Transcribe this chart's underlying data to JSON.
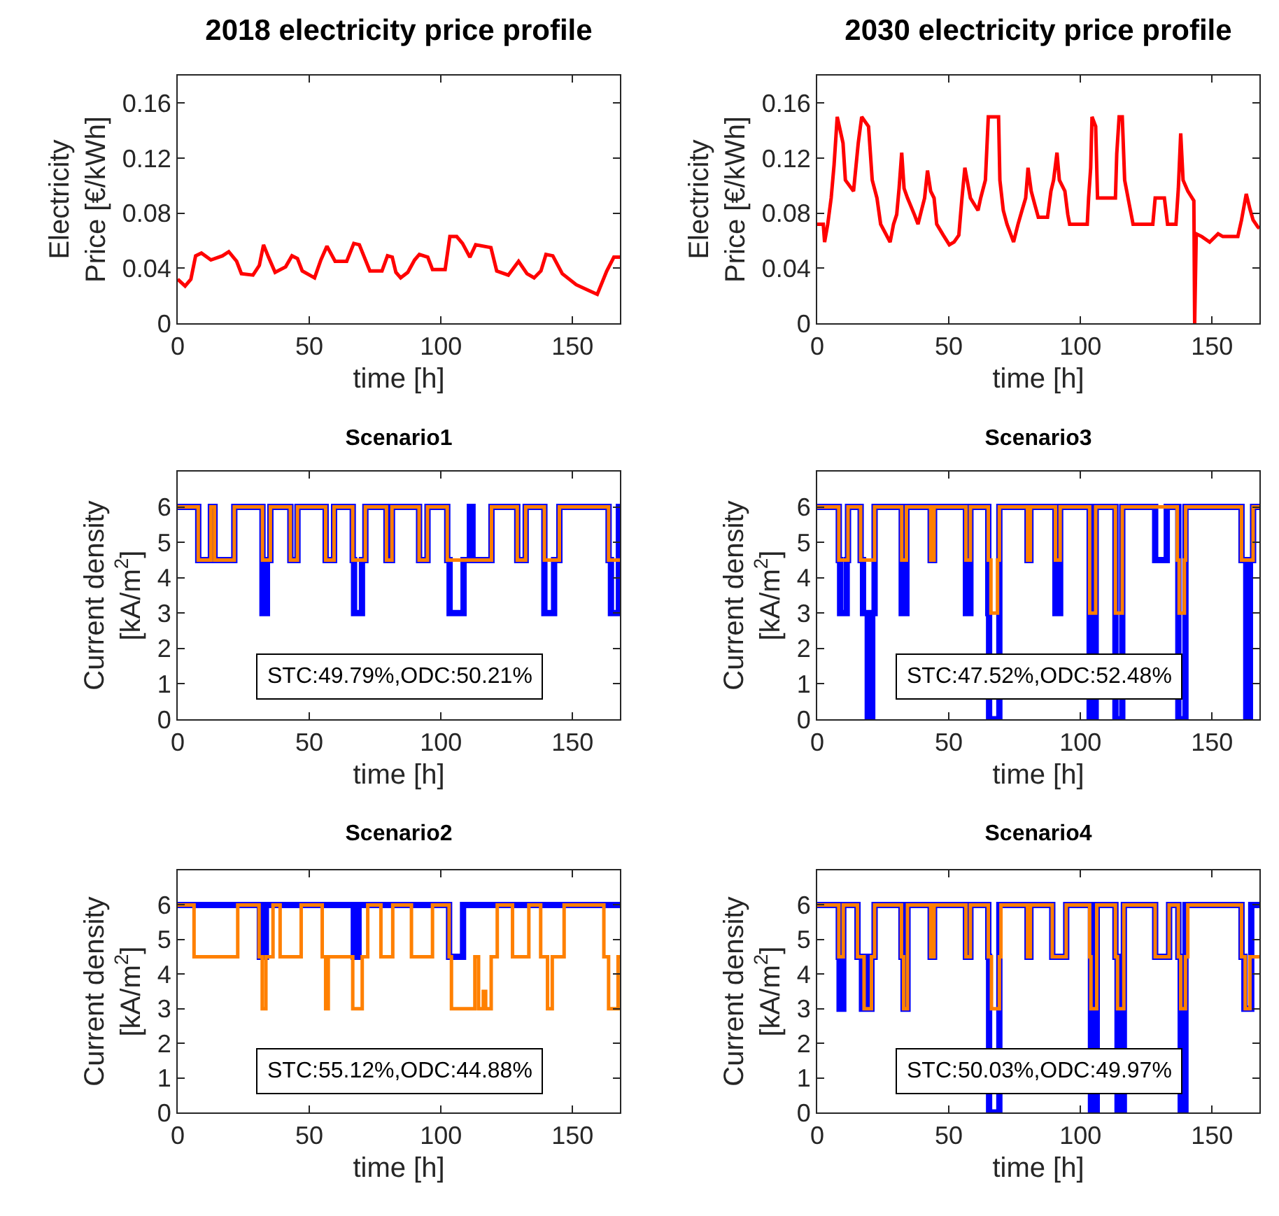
{
  "chart_data": [
    {
      "type": "line",
      "title": "2018 electricity price profile",
      "xlabel": "time [h]",
      "ylabel": "Electricity\nPrice [€/kWh]",
      "xlim": [
        0,
        168
      ],
      "xticks": [
        0,
        50,
        100,
        150
      ],
      "ylim": [
        0,
        0.18
      ],
      "yticks": [
        0,
        0.04,
        0.08,
        0.12,
        0.16
      ],
      "series": [
        {
          "color": "#ff0000",
          "x": [
            0,
            2.8,
            5,
            6.8,
            9,
            12.6,
            17,
            19.4,
            22.4,
            24.2,
            28.6,
            31,
            32.6,
            34.5,
            37,
            41,
            43.4,
            45.5,
            47.3,
            52,
            54.4,
            56.7,
            59.8,
            64.2,
            66.9,
            69,
            73,
            77.6,
            79.7,
            81.5,
            82.9,
            84.7,
            87.4,
            90,
            91.8,
            95,
            96.8,
            101.6,
            103.4,
            106,
            108.2,
            111,
            113.2,
            119,
            121.2,
            125.6,
            129.5,
            132.7,
            135.4,
            138,
            139.9,
            142.5,
            146.1,
            151.4,
            155.9,
            159.4,
            163,
            165.7,
            168
          ],
          "values": [
            0.032,
            0.027,
            0.032,
            0.049,
            0.051,
            0.046,
            0.049,
            0.052,
            0.045,
            0.036,
            0.035,
            0.042,
            0.057,
            0.048,
            0.037,
            0.041,
            0.049,
            0.047,
            0.038,
            0.033,
            0.046,
            0.056,
            0.045,
            0.045,
            0.058,
            0.057,
            0.038,
            0.038,
            0.049,
            0.048,
            0.037,
            0.033,
            0.037,
            0.046,
            0.05,
            0.048,
            0.039,
            0.039,
            0.063,
            0.063,
            0.058,
            0.048,
            0.057,
            0.055,
            0.038,
            0.035,
            0.045,
            0.036,
            0.033,
            0.038,
            0.05,
            0.049,
            0.036,
            0.028,
            0.024,
            0.021,
            0.038,
            0.048,
            0.048
          ]
        }
      ]
    },
    {
      "type": "line",
      "title": "2030 electricity price profile",
      "xlabel": "time [h]",
      "ylabel": "Electricity\nPrice [€/kWh]",
      "xlim": [
        0,
        168
      ],
      "xticks": [
        0,
        50,
        100,
        150
      ],
      "ylim": [
        0,
        0.18
      ],
      "yticks": [
        0,
        0.04,
        0.08,
        0.12,
        0.16
      ],
      "series": [
        {
          "color": "#ff0000",
          "x": [
            0,
            2.3,
            2.8,
            4,
            5.3,
            6.4,
            7.6,
            9.8,
            10.7,
            13.8,
            15.6,
            16.9,
            19.5,
            20.9,
            22.7,
            24.1,
            27.7,
            29,
            30.2,
            31.1,
            32.1,
            33,
            34.3,
            36.9,
            38.3,
            39.6,
            40.8,
            41.9,
            43.1,
            44.4,
            45.4,
            47.9,
            50.2,
            52,
            53.8,
            55,
            56.1,
            58.2,
            61.1,
            62.1,
            63.9,
            65,
            68.9,
            69.4,
            70.7,
            72.1,
            74.6,
            76.3,
            77.8,
            79.2,
            80.1,
            81.3,
            82.7,
            84,
            87.5,
            88.8,
            89.8,
            91.1,
            92,
            94.1,
            95.2,
            95.9,
            102.6,
            103.1,
            103.9,
            104.4,
            105.8,
            106.5,
            113.3,
            113.8,
            114.7,
            115.9,
            116.8,
            118.6,
            120,
            127.5,
            128.4,
            131.9,
            133.1,
            136.3,
            137.2,
            138.1,
            139,
            140.8,
            143.1,
            143.4,
            144,
            146.1,
            149.1,
            152.3,
            154.1,
            159.8,
            161.2,
            163,
            164.4,
            165.6,
            167.4,
            168
          ],
          "values": [
            0.072,
            0.072,
            0.059,
            0.072,
            0.091,
            0.115,
            0.15,
            0.131,
            0.104,
            0.096,
            0.131,
            0.15,
            0.143,
            0.104,
            0.091,
            0.072,
            0.059,
            0.072,
            0.079,
            0.098,
            0.124,
            0.098,
            0.091,
            0.079,
            0.072,
            0.082,
            0.091,
            0.111,
            0.096,
            0.091,
            0.072,
            0.064,
            0.057,
            0.059,
            0.064,
            0.091,
            0.113,
            0.091,
            0.082,
            0.091,
            0.104,
            0.15,
            0.15,
            0.104,
            0.082,
            0.072,
            0.059,
            0.072,
            0.082,
            0.091,
            0.113,
            0.096,
            0.086,
            0.077,
            0.077,
            0.096,
            0.104,
            0.124,
            0.104,
            0.096,
            0.079,
            0.072,
            0.072,
            0.091,
            0.113,
            0.15,
            0.143,
            0.091,
            0.091,
            0.123,
            0.15,
            0.15,
            0.104,
            0.086,
            0.072,
            0.072,
            0.091,
            0.091,
            0.072,
            0.072,
            0.098,
            0.138,
            0.104,
            0.096,
            0.089,
            0,
            0.065,
            0.063,
            0.059,
            0.065,
            0.063,
            0.063,
            0.075,
            0.094,
            0.083,
            0.075,
            0.07,
            0.069
          ]
        }
      ]
    },
    {
      "type": "step",
      "title": "Scenario1",
      "xlabel": "time [h]",
      "ylabel": "Current density\n[kA/m$^{2}$]",
      "xlim": [
        0,
        168
      ],
      "xticks": [
        0,
        50,
        100,
        150
      ],
      "ylim": [
        0,
        7
      ],
      "yticks": [
        0,
        1,
        2,
        3,
        4,
        5,
        6
      ],
      "annotations": [
        "STC:49.79%,ODC:50.21%"
      ],
      "series": [
        {
          "color": "#0000ff",
          "x": [
            0,
            7.8,
            12.6,
            14,
            21.5,
            32.2,
            33.9,
            35.2,
            42.8,
            45.5,
            56.2,
            59.4,
            66.5,
            67,
            70,
            71.3,
            79.3,
            81.4,
            91.7,
            94.9,
            102.4,
            103.3,
            108.6,
            111,
            112,
            119.2,
            129,
            132.2,
            139.3,
            143,
            145,
            163.7,
            164.6,
            167.6,
            168
          ],
          "values": [
            6,
            4.5,
            6,
            4.5,
            6,
            3,
            4.5,
            6,
            4.5,
            6,
            4.5,
            6,
            4.5,
            3,
            4.5,
            6,
            4.5,
            6,
            4.5,
            6,
            4.5,
            3,
            4.5,
            6,
            4.5,
            6,
            4.5,
            6,
            3,
            4.5,
            6,
            4.5,
            3,
            6,
            6
          ]
        },
        {
          "color": "#ff8000",
          "x": [
            0,
            7.8,
            12.6,
            14,
            21.5,
            32.2,
            35.2,
            42.8,
            45.5,
            56.2,
            59.4,
            66.5,
            71.3,
            79.3,
            81.4,
            91.7,
            94.9,
            102.4,
            119.2,
            129,
            132.2,
            139.3,
            145,
            163.7,
            168
          ],
          "values": [
            6,
            4.5,
            6,
            4.5,
            6,
            4.5,
            6,
            4.5,
            6,
            4.5,
            6,
            4.5,
            6,
            4.5,
            6,
            4.5,
            6,
            4.5,
            6,
            4.5,
            6,
            4.5,
            6,
            4.5,
            4.5
          ]
        }
      ]
    },
    {
      "type": "step",
      "title": "Scenario3",
      "xlabel": "time [h]",
      "ylabel": "Current density\n[kA/m$^{2}$]",
      "xlim": [
        0,
        168
      ],
      "xticks": [
        0,
        50,
        100,
        150
      ],
      "ylim": [
        0,
        7
      ],
      "yticks": [
        0,
        1,
        2,
        3,
        4,
        5,
        6
      ],
      "annotations": [
        "STC:47.52%,ODC:52.48%"
      ],
      "series": [
        {
          "color": "#0000ff",
          "x": [
            0,
            8.2,
            8.7,
            11.2,
            11.7,
            16.5,
            17.4,
            19.2,
            20.9,
            21.8,
            32.1,
            33.9,
            43.1,
            44.4,
            56.5,
            58.2,
            65,
            65.3,
            69.2,
            79.9,
            81,
            90.5,
            92.3,
            103.5,
            105.8,
            113.3,
            115.9,
            128.4,
            132.8,
            137.2,
            139.9,
            161.2,
            163,
            164.4,
            165.6,
            168
          ],
          "values": [
            6,
            4.5,
            3,
            4.5,
            6,
            4.5,
            3,
            0,
            3,
            6,
            3,
            6,
            4.5,
            6,
            3,
            6,
            3,
            0,
            6,
            4.5,
            6,
            3,
            6,
            0,
            6,
            0,
            6,
            4.5,
            6,
            0,
            6,
            4.5,
            0,
            4.5,
            6,
            6
          ]
        },
        {
          "color": "#ff8000",
          "x": [
            0,
            8.2,
            11.7,
            16.5,
            21.8,
            32.1,
            33.9,
            43.1,
            44.4,
            56.5,
            58.2,
            65,
            66,
            68.5,
            69.2,
            79.9,
            81,
            90.5,
            92.3,
            103.5,
            105.8,
            113.3,
            115.9,
            136.8,
            137.5,
            139.5,
            140,
            161.2,
            165.6,
            168
          ],
          "values": [
            6,
            4.5,
            6,
            4.5,
            6,
            4.5,
            6,
            4.5,
            6,
            4.5,
            6,
            4.5,
            3,
            4.5,
            6,
            4.5,
            6,
            4.5,
            6,
            3,
            6,
            3,
            6,
            4.5,
            3,
            4.5,
            6,
            4.5,
            6,
            6
          ]
        }
      ]
    },
    {
      "type": "step",
      "title": "Scenario2",
      "xlabel": "time [h]",
      "ylabel": "Current density\n[kA/m$^{2}$]",
      "xlim": [
        0,
        168
      ],
      "xticks": [
        0,
        50,
        100,
        150
      ],
      "ylim": [
        0,
        7
      ],
      "yticks": [
        0,
        1,
        2,
        3,
        4,
        5,
        6
      ],
      "annotations": [
        "STC:55.12%,ODC:44.88%"
      ],
      "series": [
        {
          "color": "#0000ff",
          "x": [
            0,
            31.2,
            33.5,
            66.9,
            68.7,
            103.1,
            108.4,
            168
          ],
          "values": [
            6,
            4.5,
            6,
            4.5,
            6,
            4.5,
            6,
            6
          ]
        },
        {
          "color": "#ff8000",
          "x": [
            0,
            6.2,
            22.8,
            30.9,
            32.1,
            33.5,
            36.2,
            38.9,
            46.9,
            54.9,
            56.2,
            57.2,
            66.5,
            70.1,
            72.2,
            77.2,
            81.7,
            88.8,
            96.8,
            103.1,
            104,
            112.9,
            114.3,
            116.1,
            117,
            119.1,
            121.4,
            127.2,
            133.4,
            137.9,
            140.5,
            142.3,
            146.8,
            161.9,
            163.7,
            167.3,
            168
          ],
          "values": [
            6,
            4.5,
            6,
            4.5,
            3,
            4.5,
            6,
            4.5,
            6,
            4.5,
            3,
            4.5,
            3,
            4.5,
            6,
            4.5,
            6,
            4.5,
            6,
            4.5,
            3,
            4.5,
            3,
            3.5,
            3,
            4.5,
            6,
            4.5,
            6,
            4.5,
            3,
            4.5,
            6,
            4.5,
            3,
            4.5,
            4.5
          ]
        }
      ]
    },
    {
      "type": "step",
      "title": "Scenario4",
      "xlabel": "time [h]",
      "ylabel": "Current density\n[kA/m$^{2}$]",
      "xlim": [
        0,
        168
      ],
      "xticks": [
        0,
        50,
        100,
        150
      ],
      "ylim": [
        0,
        7
      ],
      "yticks": [
        0,
        1,
        2,
        3,
        4,
        5,
        6
      ],
      "annotations": [
        "STC:50.03%,ODC:49.97%"
      ],
      "series": [
        {
          "color": "#0000ff",
          "x": [
            0,
            8.2,
            8.5,
            9.9,
            15.3,
            17,
            18.5,
            19.4,
            20.6,
            21.8,
            32,
            32.8,
            34.3,
            43.1,
            44.4,
            56.5,
            58.2,
            65,
            65.3,
            69.2,
            79.9,
            81,
            89.3,
            94.6,
            104,
            106.2,
            113.3,
            114.1,
            116.5,
            128.4,
            133.7,
            137.2,
            138.1,
            139.9,
            161.2,
            162.3,
            164.9,
            168
          ],
          "values": [
            6,
            4.5,
            3,
            6,
            4.5,
            3,
            4.5,
            3,
            4.5,
            6,
            4.5,
            3,
            6,
            4.5,
            6,
            4.5,
            6,
            4.5,
            0,
            6,
            4.5,
            6,
            4.5,
            6,
            0,
            6,
            4.5,
            0,
            6,
            4.5,
            6,
            4.5,
            0,
            6,
            4.5,
            3,
            6,
            6
          ]
        },
        {
          "color": "#ff8000",
          "x": [
            0,
            8.2,
            9.9,
            15.3,
            17.8,
            20.6,
            21.8,
            32,
            32.8,
            34.3,
            43.1,
            44.4,
            56.5,
            58.2,
            65,
            66.2,
            69.2,
            69.8,
            79.9,
            81,
            89.3,
            94.6,
            103.5,
            104,
            106.2,
            113.3,
            114.1,
            116.5,
            128.4,
            133.7,
            137.2,
            138.1,
            139.9,
            140.8,
            161.2,
            162.6,
            164.4,
            168
          ],
          "values": [
            6,
            4.5,
            6,
            4.5,
            3,
            4.5,
            6,
            4.5,
            3,
            6,
            4.5,
            6,
            4.5,
            6,
            4.5,
            3,
            4.5,
            6,
            4.5,
            6,
            4.5,
            6,
            4.5,
            3,
            6,
            4.5,
            3,
            6,
            4.5,
            6,
            4.5,
            3,
            4.5,
            6,
            4.5,
            3,
            4.5,
            4.5
          ]
        }
      ]
    }
  ]
}
